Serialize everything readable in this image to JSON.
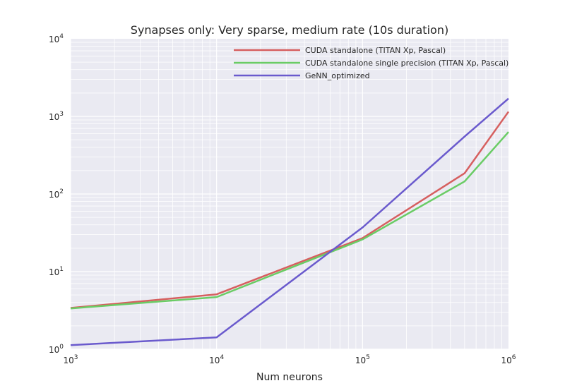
{
  "chart_data": {
    "type": "line",
    "title": "Synapses only: Very sparse, medium rate (10s duration)",
    "xlabel": "Num neurons",
    "ylabel": "",
    "xscale": "log",
    "yscale": "log",
    "xlim": [
      1000,
      1000000
    ],
    "ylim": [
      1,
      10000
    ],
    "grid": true,
    "legend_position": "top-right",
    "background": "#EAEAF2",
    "x_ticks": [
      {
        "base": "10",
        "exp": "3",
        "value": 1000
      },
      {
        "base": "10",
        "exp": "4",
        "value": 10000
      },
      {
        "base": "10",
        "exp": "5",
        "value": 100000
      },
      {
        "base": "10",
        "exp": "6",
        "value": 1000000
      }
    ],
    "y_ticks": [
      {
        "base": "10",
        "exp": "0",
        "value": 1
      },
      {
        "base": "10",
        "exp": "1",
        "value": 10
      },
      {
        "base": "10",
        "exp": "2",
        "value": 100
      },
      {
        "base": "10",
        "exp": "3",
        "value": 1000
      },
      {
        "base": "10",
        "exp": "4",
        "value": 10000
      }
    ],
    "x": [
      1000,
      10000,
      100000,
      500000,
      1000000
    ],
    "series": [
      {
        "name": "CUDA standalone (TITAN Xp, Pascal)",
        "color": "#D65F5F",
        "values": [
          3.4,
          5.1,
          27,
          185,
          1150
        ]
      },
      {
        "name": "CUDA standalone single precision (TITAN Xp, Pascal)",
        "color": "#6ACC65",
        "values": [
          3.35,
          4.7,
          26,
          145,
          630
        ]
      },
      {
        "name": "GeNN_optimized",
        "color": "#6A5ACD",
        "values": [
          1.13,
          1.42,
          37,
          550,
          1700
        ]
      }
    ]
  }
}
